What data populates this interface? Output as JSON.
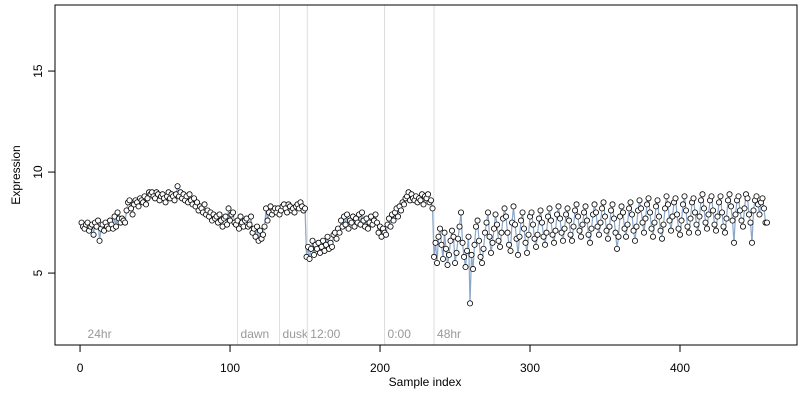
{
  "chart_data": {
    "type": "scatter",
    "x_label": "Sample index",
    "y_label": "Expression",
    "xlim": [
      -16.7,
      478.0
    ],
    "ylim": [
      1.44,
      18.27
    ],
    "xticks": [
      0,
      100,
      200,
      300,
      400
    ],
    "yticks": [
      5,
      10,
      15
    ],
    "line_color": "#8ba7c9",
    "point_fill": "#ffffff",
    "point_stroke": "#000000",
    "annotation_color": "#999999",
    "annotations": [
      {
        "x": 3,
        "label": "24hr",
        "line": false
      },
      {
        "x": 105,
        "label": "dawn",
        "line": true
      },
      {
        "x": 133,
        "label": "dusk",
        "line": true
      },
      {
        "x": 151.5,
        "label": "12:00",
        "line": true
      },
      {
        "x": 203,
        "label": "0:00",
        "line": true
      },
      {
        "x": 236,
        "label": "48hr",
        "line": true
      }
    ],
    "series": [
      {
        "x": [
          1,
          2,
          3,
          4,
          5,
          6,
          7,
          8,
          9,
          10,
          11,
          12,
          13,
          14,
          15,
          16,
          17,
          18,
          19,
          20,
          21,
          22,
          23,
          24,
          25,
          26,
          27,
          28,
          29,
          30,
          31,
          32,
          33,
          34,
          35,
          36,
          37,
          38,
          39,
          40,
          41,
          42,
          43,
          44,
          45,
          46,
          47,
          48,
          49,
          50,
          51,
          52,
          53,
          54,
          55,
          56,
          57,
          58,
          59,
          60,
          61,
          62,
          63,
          64,
          65,
          66,
          67,
          68,
          69,
          70,
          71,
          72,
          73,
          74,
          75,
          76,
          77,
          78,
          79,
          80,
          81,
          82,
          83,
          84,
          85,
          86,
          87,
          88,
          89,
          90,
          91,
          92,
          93,
          94,
          95,
          96,
          97,
          98,
          99,
          100,
          101,
          102,
          103,
          104,
          105,
          106,
          107,
          108,
          109,
          110,
          111,
          112,
          113,
          114,
          115,
          116,
          117,
          118,
          119,
          120,
          121,
          122,
          123,
          124,
          125,
          126,
          127,
          128,
          129,
          130,
          131,
          132,
          133,
          134,
          135,
          136,
          137,
          138,
          139,
          140,
          141,
          142,
          143,
          144,
          145,
          146,
          147,
          148,
          149,
          150,
          151,
          152,
          153,
          154,
          155,
          156,
          157,
          158,
          159,
          160,
          161,
          162,
          163,
          164,
          165,
          166,
          167,
          168,
          169,
          170,
          171,
          172,
          173,
          174,
          175,
          176,
          177,
          178,
          179,
          180,
          181,
          182,
          183,
          184,
          185,
          186,
          187,
          188,
          189,
          190,
          191,
          192,
          193,
          194,
          195,
          196,
          197,
          198,
          199,
          200,
          201,
          202,
          203,
          204,
          205,
          206,
          207,
          208,
          209,
          210,
          211,
          212,
          213,
          214,
          215,
          216,
          217,
          218,
          219,
          220,
          221,
          222,
          223,
          224,
          225,
          226,
          227,
          228,
          229,
          230,
          231,
          232,
          233,
          234,
          235,
          236,
          237,
          238,
          239,
          240,
          241,
          242,
          243,
          244,
          245,
          246,
          247,
          248,
          249,
          250,
          251,
          252,
          253,
          254,
          255,
          256,
          257,
          258,
          259,
          260,
          261,
          262,
          263,
          264,
          265,
          266,
          267,
          268,
          269,
          270,
          271,
          272,
          273,
          274,
          275,
          276,
          277,
          278,
          279,
          280,
          281,
          282,
          283,
          284,
          285,
          286,
          287,
          288,
          289,
          290,
          291,
          292,
          293,
          294,
          295,
          296,
          297,
          298,
          299,
          300,
          301,
          302,
          303,
          304,
          305,
          306,
          307,
          308,
          309,
          310,
          311,
          312,
          313,
          314,
          315,
          316,
          317,
          318,
          319,
          320,
          321,
          322,
          323,
          324,
          325,
          326,
          327,
          328,
          329,
          330,
          331,
          332,
          333,
          334,
          335,
          336,
          337,
          338,
          339,
          340,
          341,
          342,
          343,
          344,
          345,
          346,
          347,
          348,
          349,
          350,
          351,
          352,
          353,
          354,
          355,
          356,
          357,
          358,
          359,
          360,
          361,
          362,
          363,
          364,
          365,
          366,
          367,
          368,
          369,
          370,
          371,
          372,
          373,
          374,
          375,
          376,
          377,
          378,
          379,
          380,
          381,
          382,
          383,
          384,
          385,
          386,
          387,
          388,
          389,
          390,
          391,
          392,
          393,
          394,
          395,
          396,
          397,
          398,
          399,
          400,
          401,
          402,
          403,
          404,
          405,
          406,
          407,
          408,
          409,
          410,
          411,
          412,
          413,
          414,
          415,
          416,
          417,
          418,
          419,
          420,
          421,
          422,
          423,
          424,
          425,
          426,
          427,
          428,
          429,
          430,
          431,
          432,
          433,
          434,
          435,
          436,
          437,
          438,
          439,
          440,
          441,
          442,
          443,
          444,
          445,
          446,
          447,
          448,
          449,
          450,
          451,
          452,
          453,
          454,
          455,
          456,
          457,
          458
        ],
        "values": [
          7.5,
          7.3,
          7.2,
          7.4,
          7.5,
          7.1,
          7.3,
          7.4,
          6.9,
          7.5,
          7.3,
          7.6,
          6.6,
          7.2,
          7.4,
          7.1,
          7.5,
          7.3,
          7.2,
          7.6,
          7.4,
          7.2,
          7.8,
          7.3,
          8.0,
          7.7,
          7.5,
          7.7,
          7.6,
          7.5,
          8.1,
          8.5,
          8.6,
          8.2,
          7.9,
          8.4,
          8.6,
          8.5,
          8.3,
          8.7,
          8.6,
          8.5,
          8.8,
          8.4,
          8.7,
          9.0,
          8.9,
          9.0,
          8.8,
          8.7,
          9.0,
          8.9,
          8.6,
          8.8,
          8.9,
          8.7,
          8.5,
          8.8,
          9.0,
          8.7,
          8.9,
          8.8,
          8.6,
          8.9,
          9.3,
          8.8,
          9.0,
          8.7,
          8.9,
          8.6,
          8.8,
          8.5,
          8.9,
          8.6,
          8.4,
          8.7,
          8.3,
          8.5,
          8.1,
          8.3,
          8.2,
          8.0,
          8.4,
          7.9,
          8.1,
          7.8,
          8.0,
          7.6,
          7.9,
          7.7,
          7.8,
          7.5,
          7.9,
          7.6,
          7.3,
          7.7,
          7.8,
          7.4,
          8.2,
          7.6,
          7.9,
          8.0,
          7.5,
          7.4,
          7.6,
          7.2,
          7.8,
          7.5,
          7.3,
          7.6,
          7.7,
          7.3,
          7.4,
          7.8,
          7.0,
          7.2,
          6.8,
          7.3,
          6.6,
          7.1,
          6.7,
          6.9,
          7.3,
          8.2,
          7.6,
          8.0,
          8.3,
          7.9,
          8.1,
          8.2,
          8.0,
          8.2,
          7.9,
          8.1,
          8.3,
          8.4,
          8.2,
          8.0,
          8.4,
          8.3,
          8.1,
          8.2,
          8.0,
          8.3,
          8.4,
          8.2,
          8.5,
          8.3,
          8.1,
          8.2,
          5.8,
          6.3,
          5.7,
          6.2,
          6.6,
          5.9,
          6.4,
          6.2,
          6.5,
          6.0,
          6.3,
          6.6,
          6.1,
          6.4,
          6.8,
          6.2,
          6.5,
          6.3,
          6.9,
          7.0,
          6.7,
          7.2,
          7.0,
          7.6,
          7.3,
          7.8,
          7.4,
          7.9,
          7.2,
          7.6,
          7.5,
          7.8,
          7.3,
          7.7,
          7.5,
          7.9,
          7.4,
          8.0,
          7.6,
          7.3,
          7.7,
          7.2,
          7.5,
          7.8,
          7.4,
          7.6,
          7.9,
          7.5,
          7.0,
          7.3,
          6.8,
          7.2,
          7.0,
          6.9,
          7.4,
          7.7,
          7.3,
          7.9,
          7.6,
          8.0,
          8.2,
          7.8,
          8.3,
          8.1,
          8.5,
          8.4,
          8.7,
          8.8,
          9.0,
          8.6,
          8.9,
          8.7,
          8.6,
          8.8,
          8.5,
          8.7,
          8.6,
          8.9,
          8.4,
          8.8,
          8.7,
          8.9,
          8.5,
          8.6,
          8.2,
          5.8,
          6.5,
          5.5,
          6.8,
          7.2,
          6.4,
          5.7,
          7.0,
          6.2,
          5.4,
          5.9,
          6.6,
          7.1,
          6.8,
          5.5,
          6.0,
          6.7,
          7.3,
          8.0,
          6.5,
          5.8,
          5.3,
          6.1,
          6.8,
          3.5,
          5.9,
          5.2,
          6.4,
          7.3,
          7.6,
          6.6,
          5.8,
          5.5,
          6.2,
          7.0,
          7.5,
          8.0,
          6.8,
          6.0,
          6.5,
          7.2,
          7.9,
          7.4,
          6.6,
          6.3,
          7.0,
          7.7,
          8.2,
          7.8,
          7.0,
          6.4,
          6.1,
          7.5,
          8.3,
          7.4,
          6.7,
          5.9,
          6.8,
          7.6,
          8.0,
          7.2,
          6.5,
          6.0,
          6.9,
          7.8,
          8.0,
          7.4,
          6.7,
          6.3,
          6.9,
          7.7,
          8.1,
          7.5,
          6.8,
          6.4,
          7.0,
          7.8,
          8.2,
          7.6,
          6.9,
          6.5,
          7.1,
          7.9,
          8.3,
          7.7,
          7.0,
          6.6,
          7.2,
          7.9,
          8.2,
          7.6,
          6.9,
          6.6,
          7.3,
          8.1,
          8.4,
          7.8,
          7.1,
          6.8,
          7.4,
          8.0,
          8.3,
          7.6,
          6.9,
          6.5,
          7.2,
          7.9,
          8.4,
          8.0,
          7.3,
          6.9,
          7.5,
          8.2,
          8.5,
          7.8,
          7.1,
          6.7,
          7.3,
          8.1,
          8.4,
          7.7,
          7.0,
          6.2,
          6.8,
          7.8,
          8.3,
          8.0,
          7.2,
          6.8,
          7.4,
          8.2,
          8.5,
          7.9,
          7.1,
          6.6,
          7.3,
          8.1,
          8.6,
          8.2,
          7.5,
          7.0,
          7.7,
          8.4,
          8.7,
          8.0,
          7.2,
          6.8,
          7.5,
          8.3,
          8.6,
          7.8,
          7.1,
          6.7,
          7.4,
          8.2,
          8.8,
          8.4,
          7.6,
          7.1,
          7.8,
          8.5,
          8.7,
          7.9,
          7.2,
          6.9,
          7.6,
          8.4,
          8.8,
          8.1,
          7.3,
          7.0,
          7.7,
          8.5,
          8.7,
          8.0,
          7.4,
          7.0,
          7.8,
          8.6,
          8.9,
          8.2,
          7.5,
          7.2,
          7.9,
          8.6,
          8.8,
          8.1,
          7.4,
          7.1,
          7.8,
          8.5,
          8.8,
          8.0,
          7.3,
          7.0,
          7.7,
          8.6,
          8.9,
          8.3,
          7.6,
          6.5,
          7.9,
          8.6,
          8.8,
          8.1,
          7.6,
          7.3,
          8.2,
          8.9,
          8.7,
          7.9,
          7.5,
          6.5,
          8.1,
          8.6,
          8.8,
          8.4,
          7.9,
          8.5,
          8.7,
          8.2,
          7.5,
          7.5
        ]
      }
    ]
  }
}
